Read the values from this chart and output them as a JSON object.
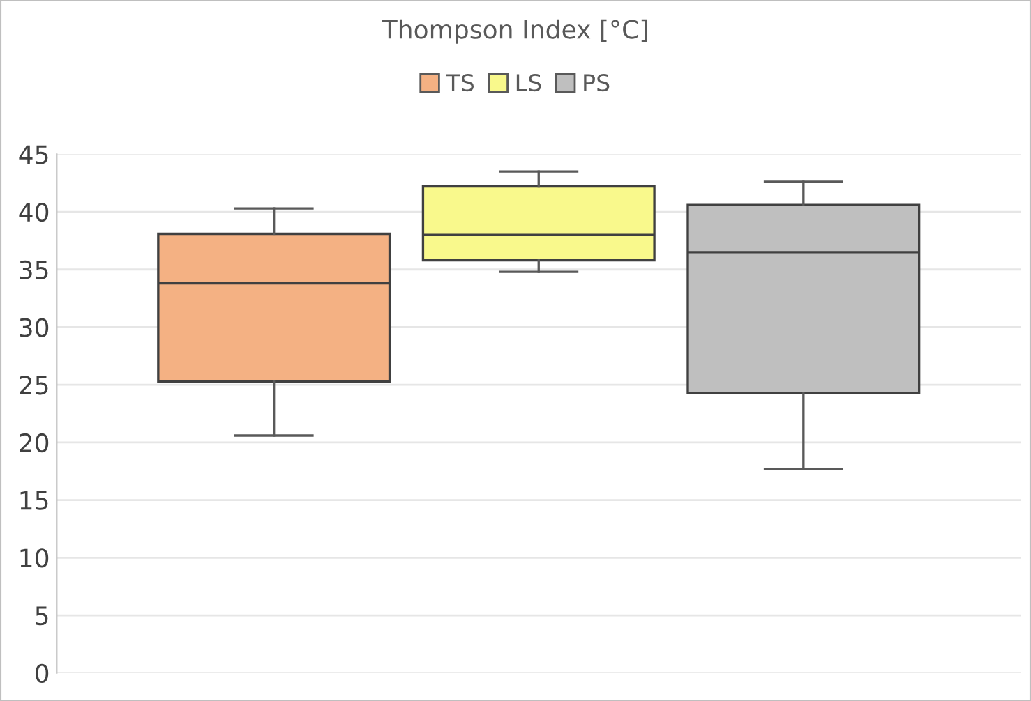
{
  "chart_data": {
    "type": "box",
    "title": "Thompson Index [°C]",
    "categories": [
      null
    ],
    "series": [
      {
        "name": "TS",
        "color": "#f4b183",
        "boxes": [
          {
            "low": 20.6,
            "q1": 25.3,
            "median": 33.8,
            "q3": 38.1,
            "high": 40.3
          }
        ]
      },
      {
        "name": "LS",
        "color": "#f9f98c",
        "boxes": [
          {
            "low": 34.8,
            "q1": 35.8,
            "median": 38.0,
            "q3": 42.2,
            "high": 43.5
          }
        ]
      },
      {
        "name": "PS",
        "color": "#bfbfbf",
        "boxes": [
          {
            "low": 17.7,
            "q1": 24.3,
            "median": 36.5,
            "q3": 40.6,
            "high": 42.6
          }
        ]
      }
    ],
    "ylim": [
      0,
      45
    ],
    "yticks": [
      0,
      5,
      10,
      15,
      20,
      25,
      30,
      35,
      40,
      45
    ],
    "grid": "y",
    "legend": "top",
    "tick_labels": "y"
  }
}
